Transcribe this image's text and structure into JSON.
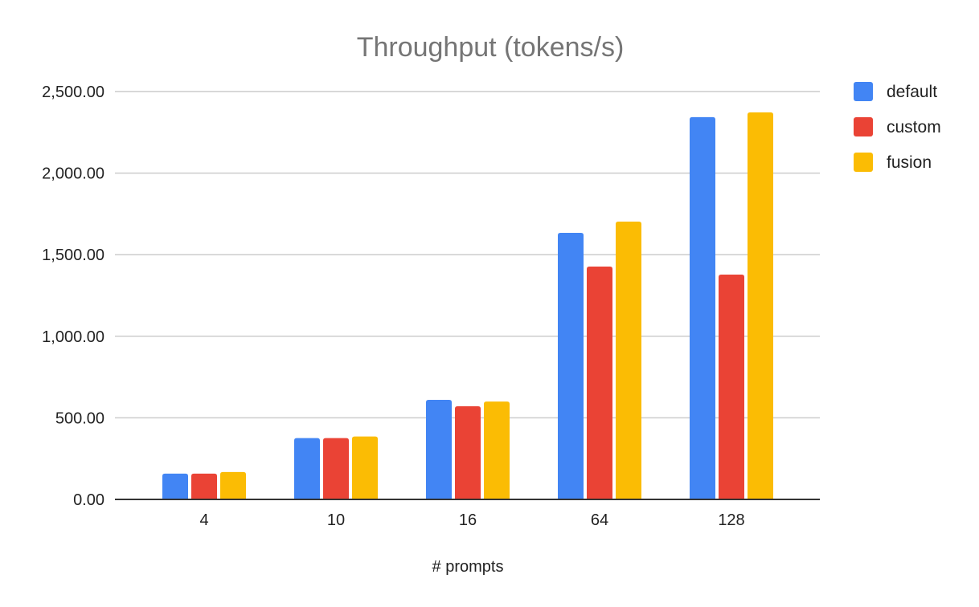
{
  "chart_data": {
    "type": "bar",
    "title": "Throughput (tokens/s)",
    "xlabel": "# prompts",
    "ylabel": "",
    "categories": [
      "4",
      "10",
      "16",
      "64",
      "128"
    ],
    "series": [
      {
        "name": "default",
        "color": "#4285F4",
        "values": [
          158,
          376,
          610,
          1634,
          2343
        ]
      },
      {
        "name": "custom",
        "color": "#EA4335",
        "values": [
          158,
          376,
          571,
          1427,
          1378
        ]
      },
      {
        "name": "fusion",
        "color": "#FBBC04",
        "values": [
          168,
          386,
          600,
          1703,
          2372
        ]
      }
    ],
    "ylim": [
      0,
      2500
    ],
    "yticks": [
      "0.00",
      "500.00",
      "1,000.00",
      "1,500.00",
      "2,000.00",
      "2,500.00"
    ],
    "grid": true,
    "legend": "right"
  }
}
